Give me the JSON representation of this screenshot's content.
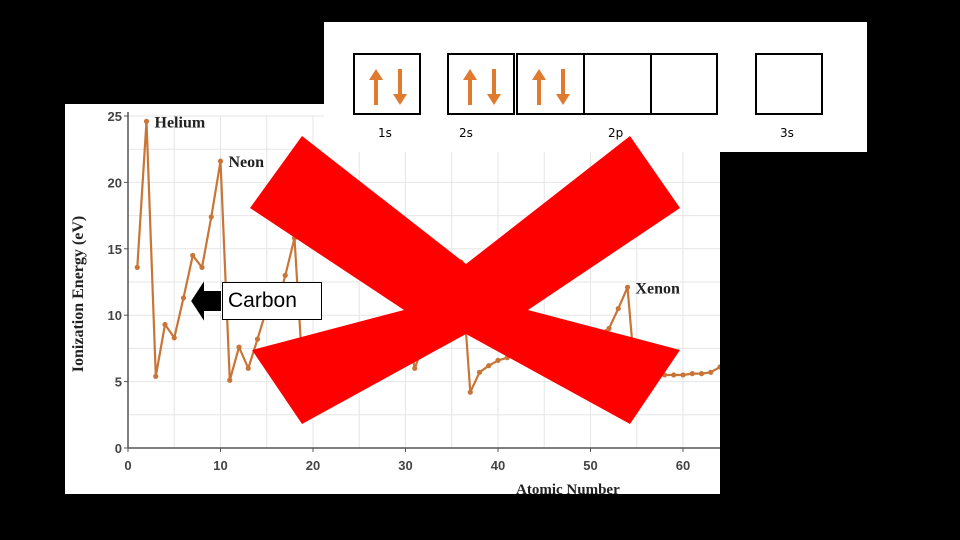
{
  "chart_data": {
    "type": "line",
    "xlabel": "Atomic Number",
    "ylabel": "Ionization Energy (eV)",
    "xlim": [
      0,
      64
    ],
    "ylim": [
      0,
      25
    ],
    "xticks": [
      "0",
      "10",
      "20",
      "30",
      "40",
      "50",
      "60"
    ],
    "yticks": [
      "0",
      "5",
      "10",
      "15",
      "20",
      "25"
    ],
    "grid": true,
    "line_color": "#c87537",
    "series": [
      {
        "x": [
          1,
          2,
          3,
          4,
          5,
          6,
          7,
          8,
          9,
          10,
          11,
          12,
          13,
          14,
          15,
          16,
          17,
          18,
          19,
          20,
          21,
          22,
          23,
          24,
          25,
          26,
          27,
          28,
          29,
          30,
          31,
          32,
          33,
          34,
          35,
          36,
          37,
          38,
          39,
          40,
          41,
          42,
          43,
          44,
          45,
          46,
          47,
          48,
          49,
          50,
          51,
          52,
          53,
          54,
          55,
          56,
          57,
          58,
          59,
          60,
          61,
          62,
          63,
          64
        ],
        "y": [
          13.6,
          24.6,
          5.4,
          9.3,
          8.3,
          11.3,
          14.5,
          13.6,
          17.4,
          21.6,
          5.1,
          7.6,
          6.0,
          8.2,
          10.5,
          10.4,
          13.0,
          15.8,
          4.3,
          6.1,
          6.5,
          6.8,
          6.7,
          6.8,
          7.4,
          7.9,
          7.9,
          7.6,
          7.7,
          9.4,
          6.0,
          7.9,
          9.8,
          9.8,
          11.8,
          14.0,
          4.2,
          5.7,
          6.2,
          6.6,
          6.8,
          7.1,
          7.3,
          7.4,
          7.5,
          8.3,
          7.6,
          9.0,
          5.8,
          7.3,
          8.6,
          9.0,
          10.5,
          12.1,
          3.9,
          5.2,
          5.6,
          5.5,
          5.5,
          5.5,
          5.6,
          5.6,
          5.7,
          6.1
        ]
      }
    ],
    "annotations": [
      {
        "text": "Helium",
        "x": 2,
        "y": 24.6
      },
      {
        "text": "Neon",
        "x": 10,
        "y": 21.6
      },
      {
        "text": "Xenon",
        "x": 54,
        "y": 12.1
      }
    ]
  },
  "orbitals": {
    "boxes": [
      {
        "label": "1s",
        "electrons": 2
      },
      {
        "label": "2s",
        "electrons": 2
      },
      {
        "label": "2p",
        "electrons": 2
      },
      {
        "label": "",
        "electrons": 0
      },
      {
        "label": "",
        "electrons": 0
      },
      {
        "label": "3s",
        "electrons": 0
      }
    ],
    "arrow_color": "#e07a2e"
  },
  "callout": {
    "label": "Carbon"
  },
  "overlay": {
    "icon": "red-x-icon",
    "color": "#ff0000"
  }
}
